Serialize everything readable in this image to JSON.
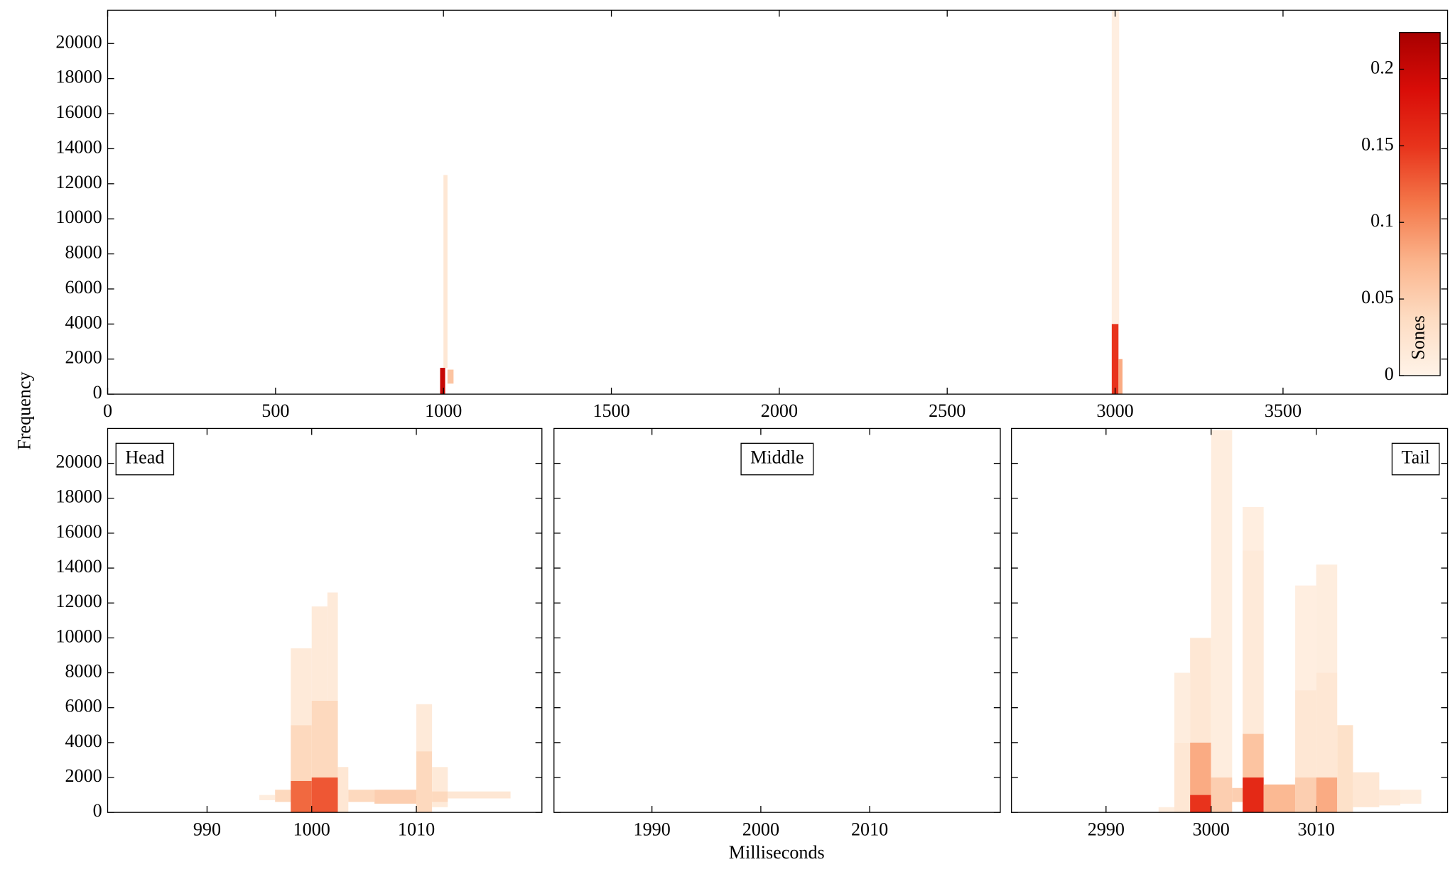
{
  "chart_data": [
    {
      "type": "heatmap",
      "ylabel": "Frequency",
      "xlim": [
        0,
        3990
      ],
      "xticks": [
        0,
        500,
        1000,
        1500,
        2000,
        2500,
        3000,
        3500
      ],
      "ylim": [
        0,
        21900
      ],
      "yticks": [
        0,
        2000,
        4000,
        6000,
        8000,
        10000,
        12000,
        14000,
        16000,
        18000,
        20000
      ],
      "colormap": [
        "#fff3e8",
        "#fddcc2",
        "#fbb48c",
        "#f4784a",
        "#e8341c",
        "#d90d08",
        "#a80000"
      ],
      "colorbar": {
        "label": "Sones",
        "zlim": [
          0,
          0.224
        ],
        "zticks": [
          0,
          0.05,
          0.1,
          0.15,
          0.2
        ]
      },
      "cells": [
        {
          "x": [
            1000,
            1012
          ],
          "y": [
            1500,
            12500
          ],
          "z": 0.02
        },
        {
          "x": [
            990,
            1005
          ],
          "y": [
            0,
            1500
          ],
          "z": 0.2
        },
        {
          "x": [
            1012,
            1030
          ],
          "y": [
            600,
            1400
          ],
          "z": 0.06
        },
        {
          "x": [
            2990,
            3012
          ],
          "y": [
            4000,
            21900
          ],
          "z": 0.008
        },
        {
          "x": [
            2990,
            3010
          ],
          "y": [
            0,
            4000
          ],
          "z": 0.15
        },
        {
          "x": [
            3010,
            3022
          ],
          "y": [
            0,
            2000
          ],
          "z": 0.08
        }
      ]
    },
    {
      "type": "heatmap",
      "label": "Head",
      "label_position": "top-left",
      "xlim": [
        980.5,
        1022
      ],
      "xticks": [
        990,
        1000,
        1010
      ],
      "ylim": [
        0,
        22000
      ],
      "yticks": [
        0,
        2000,
        4000,
        6000,
        8000,
        10000,
        12000,
        14000,
        16000,
        18000,
        20000
      ],
      "cells": [
        {
          "x": [
            995,
            996.5
          ],
          "y": [
            700,
            1000
          ],
          "z": 0.01
        },
        {
          "x": [
            996.5,
            998
          ],
          "y": [
            600,
            1300
          ],
          "z": 0.04
        },
        {
          "x": [
            998,
            1000
          ],
          "y": [
            5000,
            9400
          ],
          "z": 0.015
        },
        {
          "x": [
            998,
            1000
          ],
          "y": [
            1800,
            5000
          ],
          "z": 0.04
        },
        {
          "x": [
            998,
            1000
          ],
          "y": [
            0,
            1800
          ],
          "z": 0.12
        },
        {
          "x": [
            1000,
            1001.5
          ],
          "y": [
            6400,
            11800
          ],
          "z": 0.015
        },
        {
          "x": [
            1001.5,
            1002.5
          ],
          "y": [
            6400,
            12600
          ],
          "z": 0.015
        },
        {
          "x": [
            1000,
            1002.5
          ],
          "y": [
            2000,
            6400
          ],
          "z": 0.04
        },
        {
          "x": [
            1000,
            1002.5
          ],
          "y": [
            0,
            2000
          ],
          "z": 0.13
        },
        {
          "x": [
            1002.5,
            1003.5
          ],
          "y": [
            0,
            2600
          ],
          "z": 0.02
        },
        {
          "x": [
            1003.5,
            1006
          ],
          "y": [
            600,
            1300
          ],
          "z": 0.04
        },
        {
          "x": [
            1006,
            1010
          ],
          "y": [
            500,
            1300
          ],
          "z": 0.05
        },
        {
          "x": [
            1010,
            1011.5
          ],
          "y": [
            3500,
            6200
          ],
          "z": 0.015
        },
        {
          "x": [
            1010,
            1011.5
          ],
          "y": [
            0,
            3500
          ],
          "z": 0.04
        },
        {
          "x": [
            1011.5,
            1013
          ],
          "y": [
            300,
            2600
          ],
          "z": 0.015
        },
        {
          "x": [
            1011.5,
            1013
          ],
          "y": [
            600,
            1200
          ],
          "z": 0.04
        },
        {
          "x": [
            1013,
            1019
          ],
          "y": [
            800,
            1200
          ],
          "z": 0.02
        }
      ]
    },
    {
      "type": "heatmap",
      "label": "Middle",
      "label_position": "top-center",
      "xlabel": "Milliseconds",
      "xlim": [
        1981,
        2022
      ],
      "xticks": [
        1990,
        2000,
        2010
      ],
      "ylim": [
        0,
        22000
      ],
      "sharey": true,
      "cells": []
    },
    {
      "type": "heatmap",
      "label": "Tail",
      "label_position": "top-right",
      "xlim": [
        2981,
        3022.5
      ],
      "xticks": [
        2990,
        3000,
        3010
      ],
      "ylim": [
        0,
        22000
      ],
      "sharey": true,
      "cells": [
        {
          "x": [
            2995,
            2996.5
          ],
          "y": [
            0,
            300
          ],
          "z": 0.01
        },
        {
          "x": [
            2996.5,
            2998
          ],
          "y": [
            4000,
            8000
          ],
          "z": 0.01
        },
        {
          "x": [
            2996.5,
            2998
          ],
          "y": [
            0,
            4000
          ],
          "z": 0.02
        },
        {
          "x": [
            2998,
            3000
          ],
          "y": [
            4000,
            10000
          ],
          "z": 0.02
        },
        {
          "x": [
            2998,
            3000
          ],
          "y": [
            1000,
            4000
          ],
          "z": 0.08
        },
        {
          "x": [
            2998,
            3000
          ],
          "y": [
            0,
            1000
          ],
          "z": 0.15
        },
        {
          "x": [
            3000,
            3002
          ],
          "y": [
            2000,
            21900
          ],
          "z": 0.01
        },
        {
          "x": [
            3000,
            3002
          ],
          "y": [
            0,
            2000
          ],
          "z": 0.05
        },
        {
          "x": [
            3002,
            3003
          ],
          "y": [
            600,
            1400
          ],
          "z": 0.05
        },
        {
          "x": [
            3003,
            3005
          ],
          "y": [
            15000,
            17500
          ],
          "z": 0.008
        },
        {
          "x": [
            3003,
            3005
          ],
          "y": [
            4500,
            15000
          ],
          "z": 0.015
        },
        {
          "x": [
            3003,
            3005
          ],
          "y": [
            2000,
            4500
          ],
          "z": 0.06
        },
        {
          "x": [
            3003,
            3005
          ],
          "y": [
            0,
            2000
          ],
          "z": 0.16
        },
        {
          "x": [
            3005,
            3008
          ],
          "y": [
            0,
            1600
          ],
          "z": 0.07
        },
        {
          "x": [
            3008,
            3010
          ],
          "y": [
            7000,
            13000
          ],
          "z": 0.008
        },
        {
          "x": [
            3008,
            3010
          ],
          "y": [
            2000,
            7000
          ],
          "z": 0.02
        },
        {
          "x": [
            3008,
            3010
          ],
          "y": [
            0,
            2000
          ],
          "z": 0.05
        },
        {
          "x": [
            3010,
            3012
          ],
          "y": [
            8000,
            14200
          ],
          "z": 0.01
        },
        {
          "x": [
            3010,
            3012
          ],
          "y": [
            2000,
            8000
          ],
          "z": 0.02
        },
        {
          "x": [
            3010,
            3012
          ],
          "y": [
            0,
            2000
          ],
          "z": 0.08
        },
        {
          "x": [
            3012,
            3013.5
          ],
          "y": [
            0,
            5000
          ],
          "z": 0.03
        },
        {
          "x": [
            3013.5,
            3016
          ],
          "y": [
            300,
            2300
          ],
          "z": 0.02
        },
        {
          "x": [
            3016,
            3018
          ],
          "y": [
            400,
            1300
          ],
          "z": 0.015
        },
        {
          "x": [
            3018,
            3020
          ],
          "y": [
            500,
            1300
          ],
          "z": 0.01
        }
      ]
    }
  ]
}
